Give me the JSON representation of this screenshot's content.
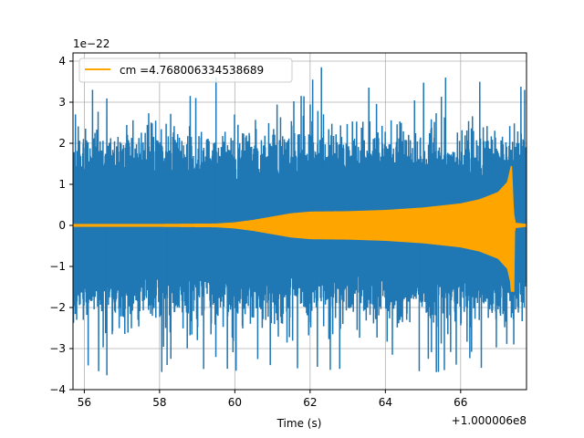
{
  "chart_data": {
    "type": "line",
    "title": "",
    "xlabel": "Time (s)",
    "ylabel": "",
    "x_offset_label": "+1.000006e8",
    "y_scale_label": "1e−22",
    "xlim": [
      55.7,
      67.75
    ],
    "ylim": [
      -4,
      4.2
    ],
    "grid": true,
    "legend_position": "top-left",
    "x_ticks": [
      56,
      58,
      60,
      62,
      64,
      66
    ],
    "x_tick_labels": [
      "56",
      "58",
      "60",
      "62",
      "64",
      "66"
    ],
    "y_ticks": [
      -4,
      -3,
      -2,
      -1,
      0,
      1,
      2,
      3,
      4
    ],
    "y_tick_labels": [
      "−4",
      "−3",
      "−2",
      "−1",
      "0",
      "1",
      "2",
      "3",
      "4"
    ],
    "series": [
      {
        "name": "",
        "color": "#1f77b4",
        "kind": "noise",
        "x_range": [
          55.7,
          67.75
        ],
        "typical_amplitude": 2.2,
        "peak_max": 3.85,
        "peak_min": -3.65
      },
      {
        "name": "cm =4.768006334538689",
        "color": "#ffa500",
        "kind": "chirp-envelope",
        "envelope": [
          [
            55.7,
            0.02
          ],
          [
            58.0,
            0.02
          ],
          [
            59.5,
            0.03
          ],
          [
            60.0,
            0.06
          ],
          [
            60.5,
            0.12
          ],
          [
            61.0,
            0.2
          ],
          [
            61.5,
            0.28
          ],
          [
            62.0,
            0.32
          ],
          [
            63.0,
            0.33
          ],
          [
            64.0,
            0.36
          ],
          [
            65.0,
            0.42
          ],
          [
            66.0,
            0.52
          ],
          [
            66.5,
            0.62
          ],
          [
            67.0,
            0.8
          ],
          [
            67.25,
            1.05
          ],
          [
            67.35,
            1.45
          ],
          [
            67.4,
            0.3
          ],
          [
            67.45,
            0.05
          ],
          [
            67.75,
            0.02
          ]
        ],
        "min_at_merger": -1.6
      }
    ]
  }
}
